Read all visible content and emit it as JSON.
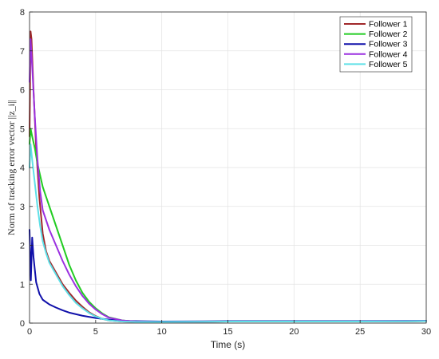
{
  "chart_data": {
    "type": "line",
    "title": "",
    "xlabel": "Time (s)",
    "ylabel": "Norm of tracking error vector ||z_i||",
    "xlim": [
      0,
      30
    ],
    "ylim": [
      0,
      8
    ],
    "xticks": [
      0,
      5,
      10,
      15,
      20,
      25,
      30
    ],
    "yticks": [
      0,
      1,
      2,
      3,
      4,
      5,
      6,
      7,
      8
    ],
    "grid": true,
    "legend_position": "top-right",
    "series": [
      {
        "name": "Follower 1",
        "color": "#A0282A",
        "x": [
          0,
          0.08,
          0.15,
          0.3,
          0.5,
          0.75,
          1.0,
          1.25,
          1.5,
          2,
          2.5,
          3,
          3.5,
          4,
          4.5,
          5,
          5.5,
          6,
          7,
          8,
          10,
          15,
          20,
          25,
          30
        ],
        "y": [
          4.8,
          7.5,
          7.3,
          6.0,
          4.5,
          3.2,
          2.3,
          1.85,
          1.6,
          1.3,
          1.0,
          0.78,
          0.58,
          0.42,
          0.28,
          0.18,
          0.11,
          0.07,
          0.04,
          0.03,
          0.03,
          0.04,
          0.04,
          0.04,
          0.05
        ]
      },
      {
        "name": "Follower 2",
        "color": "#22CC22",
        "x": [
          0,
          0.08,
          0.2,
          0.4,
          0.6,
          0.8,
          1.0,
          1.5,
          2,
          2.5,
          3,
          3.5,
          4,
          4.5,
          5,
          5.5,
          6,
          7,
          8,
          10,
          15,
          20,
          25,
          30
        ],
        "y": [
          4.6,
          5.0,
          4.8,
          4.5,
          4.1,
          3.8,
          3.5,
          3.0,
          2.5,
          2.0,
          1.5,
          1.1,
          0.78,
          0.55,
          0.38,
          0.25,
          0.15,
          0.07,
          0.04,
          0.03,
          0.04,
          0.04,
          0.04,
          0.05
        ]
      },
      {
        "name": "Follower 3",
        "color": "#1010AA",
        "x": [
          0,
          0.1,
          0.2,
          0.3,
          0.5,
          0.75,
          1.0,
          1.5,
          2,
          2.5,
          3,
          4,
          5,
          6,
          7,
          8,
          10,
          15,
          20,
          25,
          30
        ],
        "y": [
          2.4,
          1.1,
          2.2,
          1.7,
          1.05,
          0.75,
          0.6,
          0.48,
          0.4,
          0.33,
          0.27,
          0.19,
          0.13,
          0.09,
          0.06,
          0.05,
          0.04,
          0.05,
          0.05,
          0.05,
          0.06
        ]
      },
      {
        "name": "Follower 4",
        "color": "#9B30E0",
        "x": [
          0,
          0.08,
          0.2,
          0.4,
          0.6,
          0.8,
          1.0,
          1.5,
          2,
          2.5,
          3,
          3.5,
          4,
          4.5,
          5,
          5.5,
          6,
          7,
          8,
          10,
          15,
          20,
          25,
          30
        ],
        "y": [
          6.2,
          7.3,
          6.6,
          5.3,
          4.2,
          3.4,
          2.9,
          2.4,
          2.0,
          1.6,
          1.25,
          0.95,
          0.7,
          0.5,
          0.35,
          0.23,
          0.14,
          0.07,
          0.04,
          0.03,
          0.04,
          0.04,
          0.04,
          0.05
        ]
      },
      {
        "name": "Follower 5",
        "color": "#5FE0E8",
        "x": [
          0,
          0.08,
          0.2,
          0.4,
          0.6,
          0.8,
          1.0,
          1.25,
          1.5,
          2,
          2.5,
          3,
          3.5,
          4,
          4.5,
          5,
          5.5,
          6,
          7,
          8,
          10,
          15,
          20,
          25,
          30
        ],
        "y": [
          4.0,
          4.6,
          4.2,
          3.6,
          3.0,
          2.5,
          2.1,
          1.8,
          1.55,
          1.25,
          0.95,
          0.72,
          0.52,
          0.38,
          0.26,
          0.17,
          0.11,
          0.07,
          0.04,
          0.03,
          0.03,
          0.04,
          0.04,
          0.04,
          0.05
        ]
      }
    ]
  }
}
